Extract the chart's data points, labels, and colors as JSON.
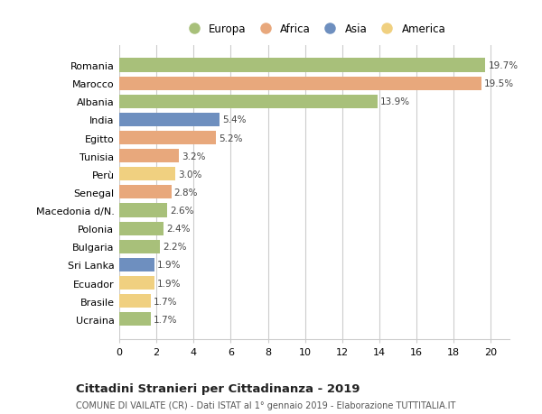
{
  "categories": [
    "Romania",
    "Marocco",
    "Albania",
    "India",
    "Egitto",
    "Tunisia",
    "Perù",
    "Senegal",
    "Macedonia d/N.",
    "Polonia",
    "Bulgaria",
    "Sri Lanka",
    "Ecuador",
    "Brasile",
    "Ucraina"
  ],
  "values": [
    19.7,
    19.5,
    13.9,
    5.4,
    5.2,
    3.2,
    3.0,
    2.8,
    2.6,
    2.4,
    2.2,
    1.9,
    1.9,
    1.7,
    1.7
  ],
  "continents": [
    "Europa",
    "Africa",
    "Europa",
    "Asia",
    "Africa",
    "Africa",
    "America",
    "Africa",
    "Europa",
    "Europa",
    "Europa",
    "Asia",
    "America",
    "America",
    "Europa"
  ],
  "colors": {
    "Europa": "#a8c07a",
    "Africa": "#e8a87c",
    "Asia": "#6e8fbf",
    "America": "#f0d080"
  },
  "xlim": [
    0,
    21
  ],
  "xticks": [
    0,
    2,
    4,
    6,
    8,
    10,
    12,
    14,
    16,
    18,
    20
  ],
  "title": "Cittadini Stranieri per Cittadinanza - 2019",
  "subtitle": "COMUNE DI VAILATE (CR) - Dati ISTAT al 1° gennaio 2019 - Elaborazione TUTTITALIA.IT",
  "background_color": "#ffffff",
  "grid_color": "#cccccc",
  "bar_height": 0.75,
  "label_fontsize": 7.5,
  "ytick_fontsize": 8.0,
  "xtick_fontsize": 8.0,
  "legend_fontsize": 8.5,
  "title_fontsize": 9.5,
  "subtitle_fontsize": 7.0
}
